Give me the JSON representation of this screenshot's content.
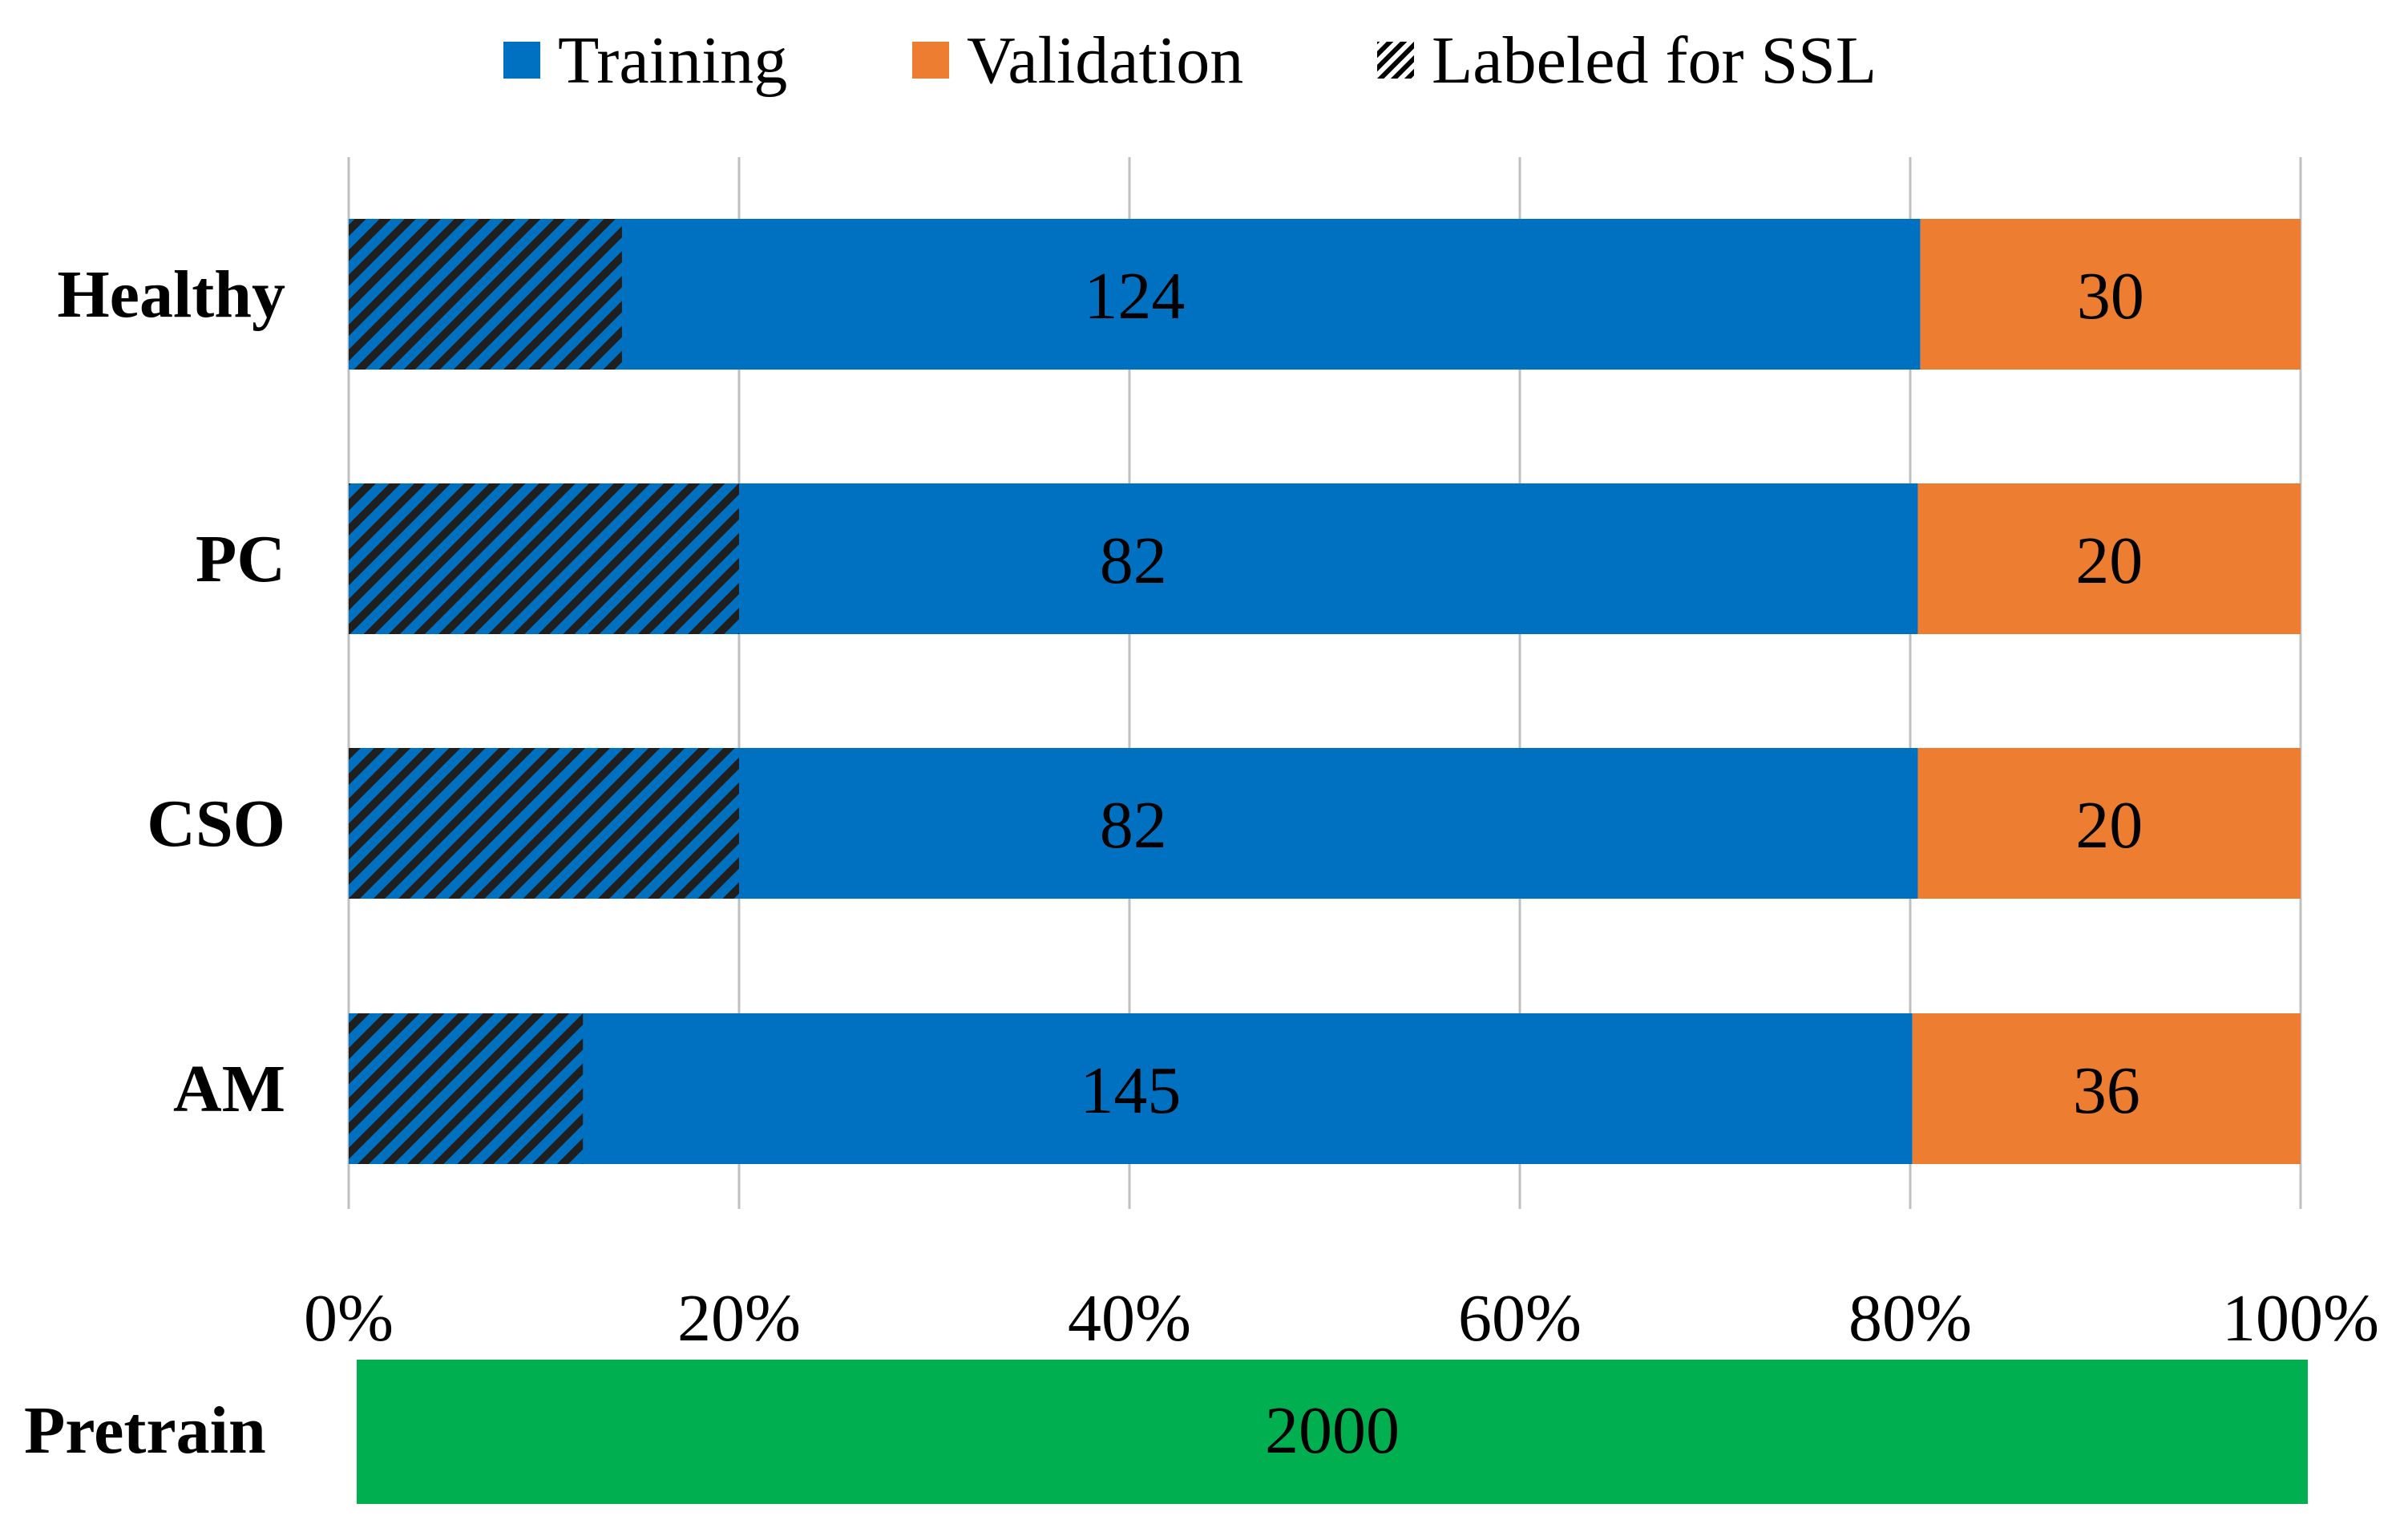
{
  "chart_data": {
    "type": "bar",
    "orientation": "horizontal",
    "stacked": "percent",
    "legend": [
      {
        "name": "Training",
        "color": "#0070c0",
        "pattern": "solid"
      },
      {
        "name": "Validation",
        "color": "#ed7d31",
        "pattern": "solid"
      },
      {
        "name": "Labeled for SSL",
        "color": "#000000",
        "pattern": "diagonal-hatch"
      }
    ],
    "legend_position": "top",
    "categories": [
      "Healthy",
      "PC",
      "CSO",
      "AM"
    ],
    "series": [
      {
        "name": "Training",
        "values": [
          124,
          82,
          82,
          145
        ],
        "color": "#0070c0"
      },
      {
        "name": "Validation",
        "values": [
          30,
          20,
          20,
          36
        ],
        "color": "#ed7d31"
      }
    ],
    "labeled_for_ssl_share": [
      0.14,
      0.2,
      0.2,
      0.12
    ],
    "x_ticks": [
      "0%",
      "20%",
      "40%",
      "60%",
      "80%",
      "100%"
    ],
    "xlim": [
      0,
      100
    ],
    "grid": true,
    "pretrain": {
      "label": "Pretrain",
      "value": "2000",
      "color": "#00b050"
    }
  }
}
